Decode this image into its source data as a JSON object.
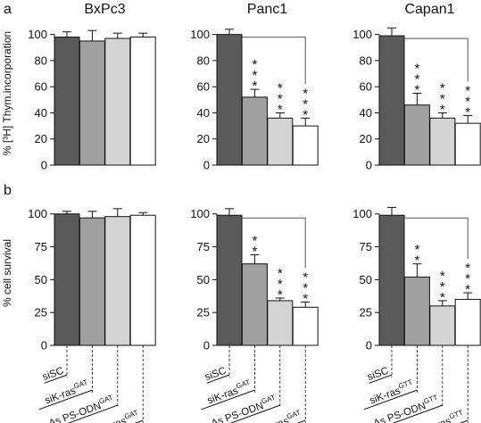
{
  "figure": {
    "label_a": "a",
    "label_b": "b"
  },
  "style": {
    "bar_colors": [
      "#5a5a5a",
      "#a0a0a0",
      "#d4d4d4",
      "#ffffff"
    ]
  },
  "chart_data": [
    {
      "type": "bar",
      "row": "a",
      "title": "BxPc3",
      "ylabel": "% [³H] Thym.incorporation",
      "ylim": [
        0,
        110
      ],
      "yticks": [
        "0",
        "20",
        "40",
        "60",
        "80",
        "100"
      ],
      "values": [
        98,
        95,
        97,
        98
      ],
      "errors": [
        4,
        8,
        4,
        3
      ],
      "stars": [
        0,
        0,
        0,
        0
      ],
      "bracket": false
    },
    {
      "type": "bar",
      "row": "a",
      "title": "Panc1",
      "ylim": [
        0,
        110
      ],
      "yticks": [
        "0",
        "20",
        "40",
        "60",
        "80",
        "100"
      ],
      "values": [
        100,
        52,
        36,
        30
      ],
      "errors": [
        4,
        6,
        4,
        6
      ],
      "stars": [
        0,
        3,
        3,
        3
      ],
      "bracket": true
    },
    {
      "type": "bar",
      "row": "a",
      "title": "Capan1",
      "ylim": [
        0,
        110
      ],
      "yticks": [
        "0",
        "20",
        "40",
        "60",
        "80",
        "100"
      ],
      "values": [
        99,
        46,
        36,
        32
      ],
      "errors": [
        6,
        9,
        4,
        6
      ],
      "stars": [
        0,
        3,
        3,
        3
      ],
      "bracket": true
    },
    {
      "type": "bar",
      "row": "b",
      "title": "",
      "ylabel": "% cell survival",
      "ylim": [
        0,
        110
      ],
      "yticks": [
        "0",
        "25",
        "50",
        "75",
        "100"
      ],
      "values": [
        100,
        97,
        98,
        99
      ],
      "errors": [
        2,
        5,
        6,
        2
      ],
      "stars": [
        0,
        0,
        0,
        0
      ],
      "bracket": false,
      "categories": [
        {
          "base": "siSC",
          "sup": ""
        },
        {
          "base": "siK-ras",
          "sup": "GAT"
        },
        {
          "base": "As PS-ODN",
          "sup": "GAT"
        },
        {
          "base": "pSsik-ras",
          "sup": "GAT"
        }
      ]
    },
    {
      "type": "bar",
      "row": "b",
      "title": "",
      "ylim": [
        0,
        110
      ],
      "yticks": [
        "0",
        "25",
        "50",
        "75",
        "100"
      ],
      "values": [
        99,
        62,
        34,
        29
      ],
      "errors": [
        5,
        7,
        2,
        4
      ],
      "stars": [
        0,
        2,
        3,
        3
      ],
      "bracket": true,
      "categories": [
        {
          "base": "siSC",
          "sup": ""
        },
        {
          "base": "siK-ras",
          "sup": "GAT"
        },
        {
          "base": "As PS-ODN",
          "sup": "GAT"
        },
        {
          "base": "pSsik-ras",
          "sup": "GAT"
        }
      ]
    },
    {
      "type": "bar",
      "row": "b",
      "title": "",
      "ylim": [
        0,
        110
      ],
      "yticks": [
        "0",
        "25",
        "50",
        "75",
        "100"
      ],
      "values": [
        99,
        52,
        30,
        35
      ],
      "errors": [
        6,
        10,
        4,
        5
      ],
      "stars": [
        0,
        2,
        3,
        3
      ],
      "bracket": true,
      "categories": [
        {
          "base": "siSC",
          "sup": ""
        },
        {
          "base": "siK-ras",
          "sup": "GTT"
        },
        {
          "base": "As PS-ODN",
          "sup": "GTT"
        },
        {
          "base": "pSsik-ras",
          "sup": "GTT"
        }
      ]
    }
  ]
}
